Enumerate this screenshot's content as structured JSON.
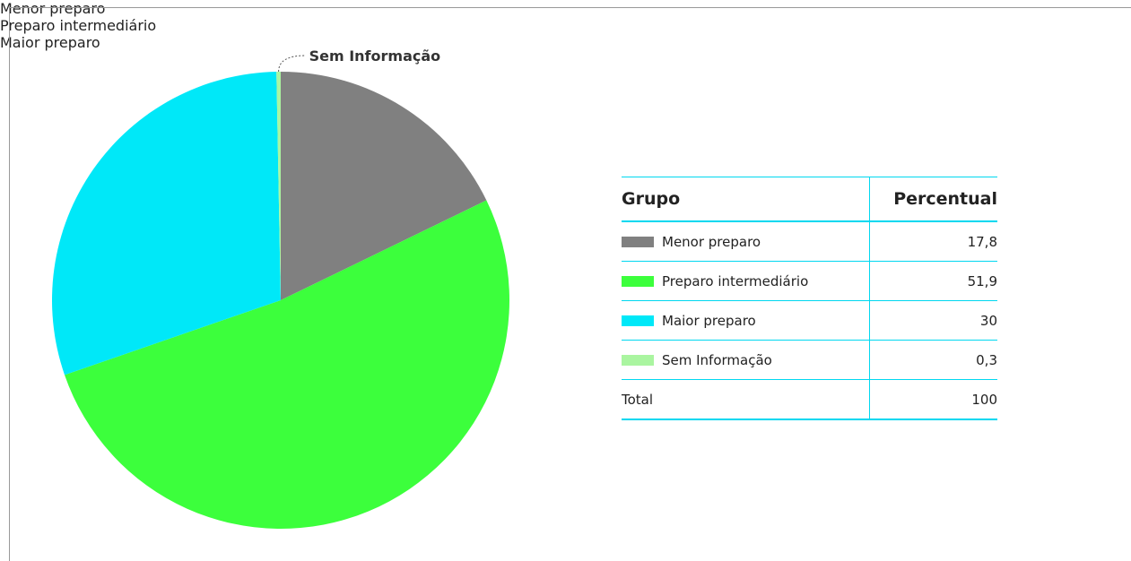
{
  "chart_data": {
    "type": "pie",
    "categories": [
      "Menor preparo",
      "Preparo intermediário",
      "Maior preparo",
      "Sem Informação"
    ],
    "values": [
      17.8,
      51.9,
      30,
      0.3
    ],
    "value_labels": [
      "17,8",
      "51,9",
      "30",
      "0,3"
    ],
    "colors": [
      "#808080",
      "#3cff3c",
      "#00e8f8",
      "#aaf5a0"
    ],
    "table_headers": [
      "Grupo",
      "Percentual"
    ],
    "total_label": "Total",
    "total_value": 100
  }
}
